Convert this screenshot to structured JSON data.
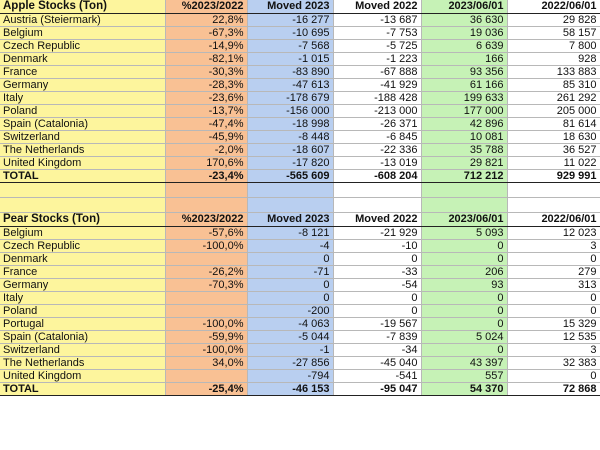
{
  "apple": {
    "headers": [
      "Apple Stocks (Ton)",
      "%2023/2022",
      "Moved 2023",
      "Moved 2022",
      "2023/06/01",
      "2022/06/01"
    ],
    "rows": [
      [
        "Austria (Steiermark)",
        "22,8%",
        "-16 277",
        "-13 687",
        "36 630",
        "29 828"
      ],
      [
        "Belgium",
        "-67,3%",
        "-10 695",
        "-7 753",
        "19 036",
        "58 157"
      ],
      [
        "Czech Republic",
        "-14,9%",
        "-7 568",
        "-5 725",
        "6 639",
        "7 800"
      ],
      [
        "Denmark",
        "-82,1%",
        "-1 015",
        "-1 223",
        "166",
        "928"
      ],
      [
        "France",
        "-30,3%",
        "-83 890",
        "-67 888",
        "93 356",
        "133 883"
      ],
      [
        "Germany",
        "-28,3%",
        "-47 613",
        "-41 929",
        "61 166",
        "85 310"
      ],
      [
        "Italy",
        "-23,6%",
        "-178 679",
        "-188 428",
        "199 633",
        "261 292"
      ],
      [
        "Poland",
        "-13,7%",
        "-156 000",
        "-213 000",
        "177 000",
        "205 000"
      ],
      [
        "Spain (Catalonia)",
        "-47,4%",
        "-18 998",
        "-26 371",
        "42 896",
        "81 614"
      ],
      [
        "Switzerland",
        "-45,9%",
        "-8 448",
        "-6 845",
        "10 081",
        "18 630"
      ],
      [
        "The Netherlands",
        "-2,0%",
        "-18 607",
        "-22 336",
        "35 788",
        "36 527"
      ],
      [
        "United Kingdom",
        "170,6%",
        "-17 820",
        "-13 019",
        "29 821",
        "11 022"
      ]
    ],
    "total": [
      "TOTAL",
      "-23,4%",
      "-565 609",
      "-608 204",
      "712 212",
      "929 991"
    ]
  },
  "pear": {
    "headers": [
      "Pear Stocks (Ton)",
      "%2023/2022",
      "Moved 2023",
      "Moved 2022",
      "2023/06/01",
      "2022/06/01"
    ],
    "rows": [
      [
        "Belgium",
        "-57,6%",
        "-8 121",
        "-21 929",
        "5 093",
        "12 023"
      ],
      [
        "Czech Republic",
        "-100,0%",
        "-4",
        "-10",
        "0",
        "3"
      ],
      [
        "Denmark",
        "",
        "0",
        "0",
        "0",
        "0"
      ],
      [
        "France",
        "-26,2%",
        "-71",
        "-33",
        "206",
        "279"
      ],
      [
        "Germany",
        "-70,3%",
        "0",
        "-54",
        "93",
        "313"
      ],
      [
        "Italy",
        "",
        "0",
        "0",
        "0",
        "0"
      ],
      [
        "Poland",
        "",
        "-200",
        "0",
        "0",
        "0"
      ],
      [
        "Portugal",
        "-100,0%",
        "-4 063",
        "-19 567",
        "0",
        "15 329"
      ],
      [
        "Spain (Catalonia)",
        "-59,9%",
        "-5 044",
        "-7 839",
        "5 024",
        "12 535"
      ],
      [
        "Switzerland",
        "-100,0%",
        "-1",
        "-34",
        "0",
        "3"
      ],
      [
        "The Netherlands",
        "34,0%",
        "-27 856",
        "-45 040",
        "43 397",
        "32 383"
      ],
      [
        "United Kingdom",
        "",
        "-794",
        "-541",
        "557",
        "0"
      ]
    ],
    "total": [
      "TOTAL",
      "-25,4%",
      "-46 153",
      "-95 047",
      "54 370",
      "72 868"
    ]
  },
  "colors": {
    "country": "#fdf59d",
    "pct": "#f9c194",
    "moved2023": "#b9cff0",
    "stock2023": "#c6f2b6"
  }
}
